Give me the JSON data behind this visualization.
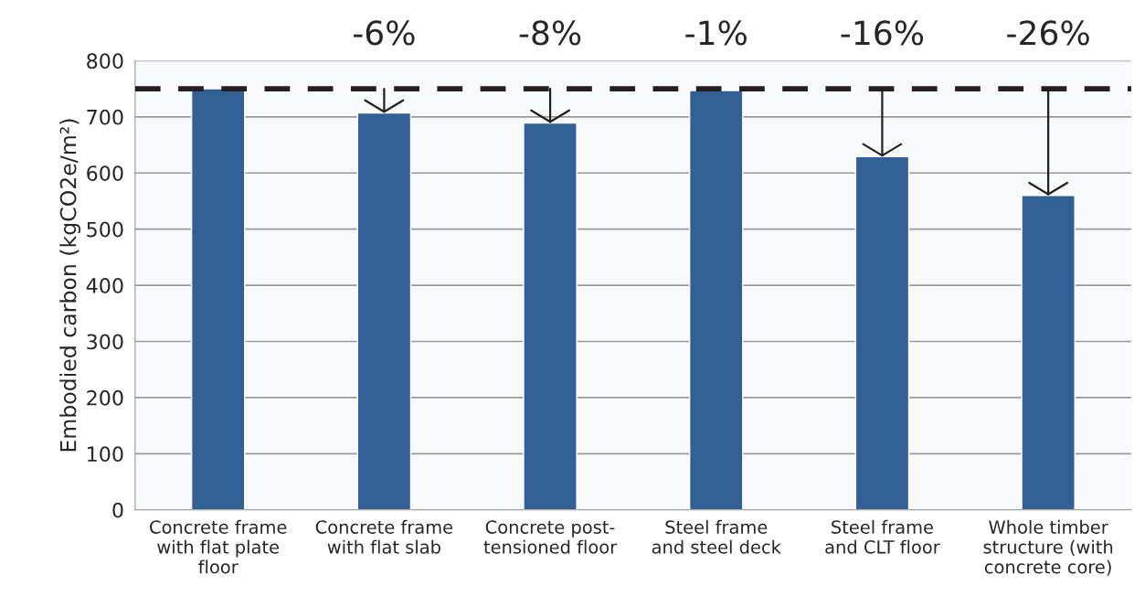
{
  "chart_data": {
    "type": "bar",
    "categories": [
      "Concrete frame\nwith flat plate\nfloor",
      "Concrete frame\nwith flat slab",
      "Concrete post-\ntensioned floor",
      "Steel frame\nand steel deck",
      "Steel frame\nand CLT floor",
      "Whole timber\nstructure (with\nconcrete core)"
    ],
    "values": [
      750,
      707,
      689,
      747,
      629,
      560
    ],
    "color": "#325f94",
    "ylabel": "Embodied carbon (kgCO2e/m²)",
    "ylim": [
      0,
      800
    ],
    "yticks": [
      0,
      100,
      200,
      300,
      400,
      500,
      600,
      700,
      800
    ],
    "grid": "y",
    "ref_lines": [
      {
        "axis": "y",
        "value": 750,
        "color": "#231f20",
        "line_style": "dashed"
      }
    ],
    "annotations": [
      "-6%",
      "-8%",
      "-1%",
      "-16%",
      "-26%"
    ]
  }
}
